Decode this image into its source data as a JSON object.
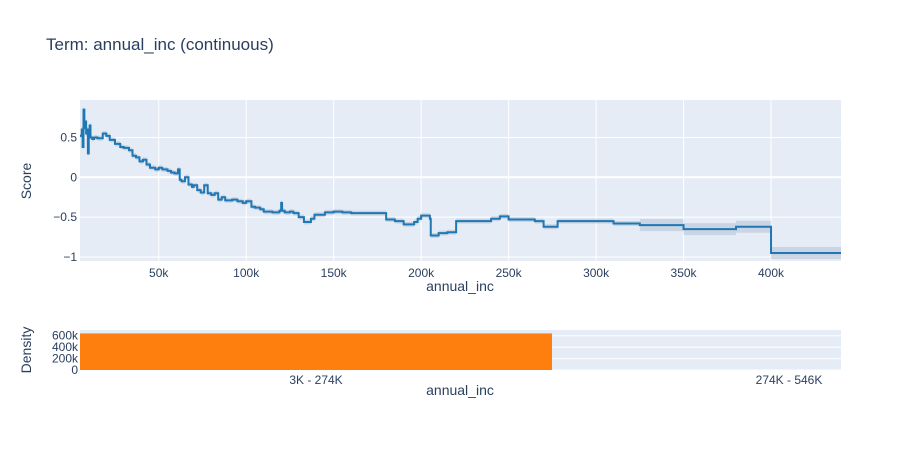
{
  "title": "Term: annual_inc (continuous)",
  "colors": {
    "plot_bg": "#e5ecf6",
    "grid": "#ffffff",
    "line": "#1f77b4",
    "band": "#a9b7c9",
    "bar": "#ff7f0e",
    "text": "#2a3f5f",
    "tick": "#506784"
  },
  "chart_data": [
    {
      "type": "line",
      "name": "score-plot",
      "xlabel": "annual_inc",
      "ylabel": "Score",
      "xlim": [
        5000,
        440000
      ],
      "ylim": [
        -1.05,
        0.97
      ],
      "xticks": [
        50000,
        100000,
        150000,
        200000,
        250000,
        300000,
        350000,
        400000
      ],
      "xtick_labels": [
        "50k",
        "100k",
        "150k",
        "200k",
        "250k",
        "300k",
        "350k",
        "400k"
      ],
      "yticks": [
        0.5,
        0,
        -0.5,
        -1
      ],
      "ytick_labels": [
        "0.5",
        "0",
        "−0.5",
        "−1"
      ],
      "grid": true,
      "step": true,
      "points": [
        [
          5000,
          0.52
        ],
        [
          6000,
          0.6
        ],
        [
          6500,
          0.38
        ],
        [
          7000,
          0.85
        ],
        [
          7500,
          0.62
        ],
        [
          8000,
          0.7
        ],
        [
          8500,
          0.55
        ],
        [
          9000,
          0.6
        ],
        [
          9500,
          0.3
        ],
        [
          10000,
          0.58
        ],
        [
          10500,
          0.65
        ],
        [
          11000,
          0.5
        ],
        [
          12000,
          0.48
        ],
        [
          13000,
          0.5
        ],
        [
          15000,
          0.49
        ],
        [
          18000,
          0.55
        ],
        [
          20000,
          0.52
        ],
        [
          22000,
          0.47
        ],
        [
          25000,
          0.42
        ],
        [
          28000,
          0.38
        ],
        [
          30000,
          0.37
        ],
        [
          33000,
          0.34
        ],
        [
          35000,
          0.27
        ],
        [
          37000,
          0.25
        ],
        [
          39000,
          0.2
        ],
        [
          41000,
          0.22
        ],
        [
          43000,
          0.16
        ],
        [
          45000,
          0.12
        ],
        [
          48000,
          0.1
        ],
        [
          50000,
          0.12
        ],
        [
          52000,
          0.1
        ],
        [
          55000,
          0.08
        ],
        [
          57000,
          0.06
        ],
        [
          59000,
          0.05
        ],
        [
          61000,
          0.1
        ],
        [
          62000,
          -0.03
        ],
        [
          63000,
          -0.05
        ],
        [
          65000,
          0.0
        ],
        [
          67000,
          -0.09
        ],
        [
          69000,
          -0.12
        ],
        [
          70000,
          -0.1
        ],
        [
          72000,
          -0.16
        ],
        [
          74000,
          -0.19
        ],
        [
          76000,
          -0.1
        ],
        [
          78000,
          -0.2
        ],
        [
          80000,
          -0.22
        ],
        [
          82000,
          -0.2
        ],
        [
          84000,
          -0.28
        ],
        [
          86000,
          -0.25
        ],
        [
          88000,
          -0.29
        ],
        [
          92000,
          -0.28
        ],
        [
          95000,
          -0.3
        ],
        [
          98000,
          -0.32
        ],
        [
          100000,
          -0.3
        ],
        [
          103000,
          -0.37
        ],
        [
          105000,
          -0.38
        ],
        [
          108000,
          -0.4
        ],
        [
          110000,
          -0.43
        ],
        [
          115000,
          -0.44
        ],
        [
          119000,
          -0.42
        ],
        [
          120000,
          -0.32
        ],
        [
          120500,
          -0.42
        ],
        [
          122000,
          -0.44
        ],
        [
          125000,
          -0.43
        ],
        [
          127000,
          -0.45
        ],
        [
          130000,
          -0.5
        ],
        [
          133000,
          -0.56
        ],
        [
          137000,
          -0.52
        ],
        [
          139000,
          -0.47
        ],
        [
          145000,
          -0.44
        ],
        [
          150000,
          -0.43
        ],
        [
          155000,
          -0.44
        ],
        [
          160000,
          -0.45
        ],
        [
          178000,
          -0.45
        ],
        [
          180000,
          -0.53
        ],
        [
          185000,
          -0.55
        ],
        [
          190000,
          -0.59
        ],
        [
          196000,
          -0.56
        ],
        [
          198000,
          -0.52
        ],
        [
          200000,
          -0.48
        ],
        [
          205000,
          -0.52
        ],
        [
          205500,
          -0.73
        ],
        [
          210000,
          -0.7
        ],
        [
          215000,
          -0.69
        ],
        [
          220000,
          -0.55
        ],
        [
          240000,
          -0.52
        ],
        [
          245000,
          -0.49
        ],
        [
          250000,
          -0.53
        ],
        [
          265000,
          -0.55
        ],
        [
          270000,
          -0.62
        ],
        [
          278000,
          -0.55
        ],
        [
          300000,
          -0.55
        ],
        [
          310000,
          -0.58
        ],
        [
          325000,
          -0.6
        ],
        [
          350000,
          -0.65
        ],
        [
          380000,
          -0.62
        ],
        [
          400000,
          -0.95
        ],
        [
          440000,
          -0.95
        ]
      ]
    },
    {
      "type": "bar",
      "name": "density-plot",
      "xlabel": "annual_inc",
      "ylabel": "Density",
      "categories": [
        "3K - 274K",
        "274K - 546K"
      ],
      "values": [
        640000,
        0
      ],
      "ylim": [
        0,
        700000
      ],
      "yticks": [
        0,
        200000,
        400000,
        600000
      ],
      "ytick_labels": [
        "0",
        "200k",
        "400k",
        "600k"
      ],
      "grid": true
    }
  ]
}
